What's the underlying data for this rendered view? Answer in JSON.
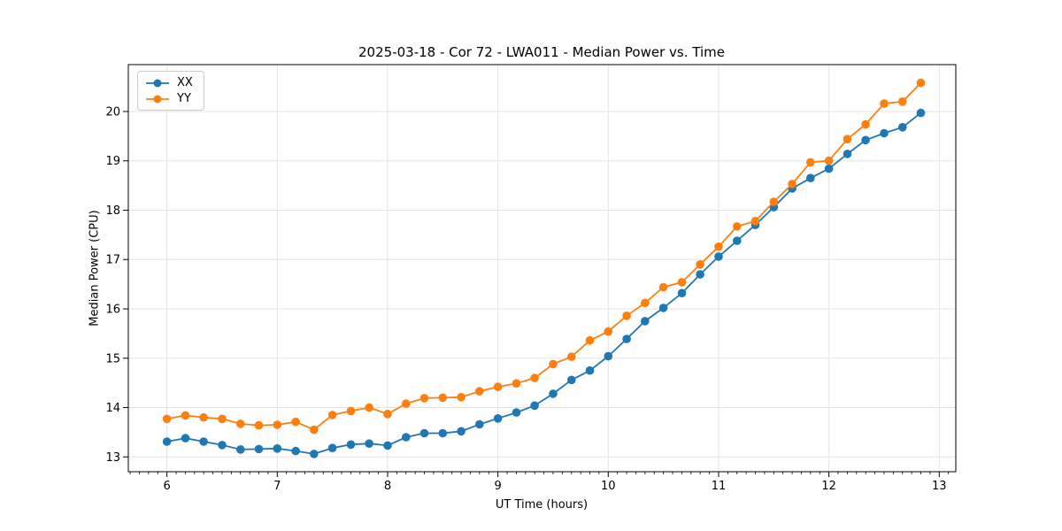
{
  "chart_data": {
    "type": "line",
    "title": "2025-03-18 - Cor 72 - LWA011 - Median Power vs. Time",
    "xlabel": "UT Time (hours)",
    "ylabel": "Median Power (CPU)",
    "xlim": [
      5.65,
      13.15
    ],
    "ylim": [
      12.7,
      20.95
    ],
    "x_ticks": [
      6,
      7,
      8,
      9,
      10,
      11,
      12,
      13
    ],
    "y_ticks": [
      13,
      14,
      15,
      16,
      17,
      18,
      19,
      20
    ],
    "grid": true,
    "minor_ticks_per_hour": 12,
    "legend_position": "upper left",
    "grid_color": "#e5e5e5",
    "x": [
      6.0,
      6.167,
      6.333,
      6.5,
      6.667,
      6.833,
      7.0,
      7.167,
      7.333,
      7.5,
      7.667,
      7.833,
      8.0,
      8.167,
      8.333,
      8.5,
      8.667,
      8.833,
      9.0,
      9.167,
      9.333,
      9.5,
      9.667,
      9.833,
      10.0,
      10.167,
      10.333,
      10.5,
      10.667,
      10.833,
      11.0,
      11.167,
      11.333,
      11.5,
      11.667,
      11.833,
      12.0,
      12.167,
      12.333,
      12.5,
      12.667,
      12.833
    ],
    "series": [
      {
        "name": "XX",
        "color": "#1f77b4",
        "values": [
          13.31,
          13.38,
          13.31,
          13.24,
          13.15,
          13.16,
          13.17,
          13.12,
          13.06,
          13.18,
          13.25,
          13.27,
          13.23,
          13.4,
          13.48,
          13.48,
          13.52,
          13.66,
          13.78,
          13.9,
          14.04,
          14.28,
          14.56,
          14.75,
          15.04,
          15.39,
          15.75,
          16.02,
          16.32,
          16.7,
          17.06,
          17.38,
          17.7,
          18.06,
          18.44,
          18.65,
          18.84,
          19.14,
          19.42,
          19.56,
          19.68,
          19.97
        ]
      },
      {
        "name": "YY",
        "color": "#ff7f0e",
        "values": [
          13.77,
          13.84,
          13.8,
          13.77,
          13.67,
          13.64,
          13.65,
          13.71,
          13.55,
          13.85,
          13.93,
          14.0,
          13.87,
          14.08,
          14.19,
          14.2,
          14.21,
          14.33,
          14.42,
          14.49,
          14.6,
          14.88,
          15.03,
          15.36,
          15.54,
          15.86,
          16.12,
          16.44,
          16.54,
          16.9,
          17.26,
          17.67,
          17.78,
          18.17,
          18.53,
          18.97,
          19.0,
          19.44,
          19.74,
          20.16,
          20.2,
          20.58
        ]
      }
    ]
  }
}
